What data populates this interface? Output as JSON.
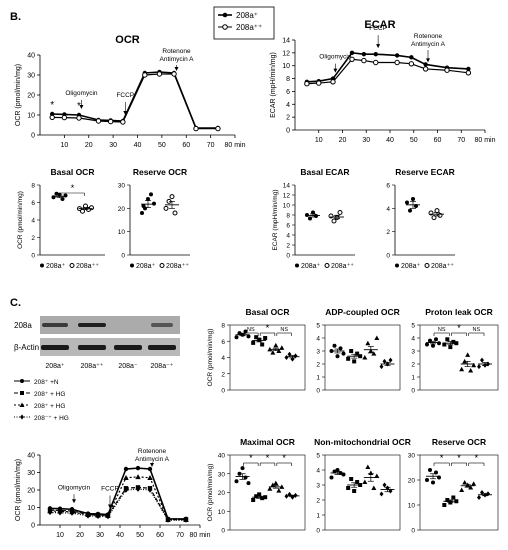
{
  "panel_B_label": "B.",
  "panel_C_label": "C.",
  "top_legend": {
    "series": [
      "208a⁺",
      "208a⁺⁺"
    ]
  },
  "c_legend": [
    "208⁺ +N",
    "208⁺ + HG",
    "208⁺ + HG",
    "208⁻⁺ + HG"
  ],
  "blot": {
    "rows": [
      "208a",
      "β-Actin"
    ],
    "lanes": [
      "208a⁺",
      "208a⁺⁺",
      "208a⁻",
      "208a⁻⁺"
    ]
  },
  "chart_data": [
    {
      "id": "ocr_time",
      "type": "line",
      "title": "OCR",
      "xlabel": "",
      "ylabel": "OCR (pmol/min/mg)",
      "x_unit": "min",
      "xlim": [
        0,
        80
      ],
      "ylim": [
        0,
        40
      ],
      "xticks": [
        10,
        20,
        30,
        40,
        50,
        60,
        70,
        80
      ],
      "yticks": [
        0,
        10,
        20,
        30,
        40
      ],
      "annotations": [
        "Oligomycin",
        "FCCP",
        "Rotenone",
        "Antimycin A"
      ],
      "injection_times": [
        17,
        35,
        56
      ],
      "star_times": [
        5,
        16
      ],
      "x": [
        5,
        10,
        16,
        24,
        29,
        34,
        43,
        49,
        55,
        64,
        73
      ],
      "series": [
        {
          "name": "208a⁺",
          "marker": "filled",
          "values": [
            10.5,
            10.3,
            10,
            7.5,
            7.3,
            7,
            31,
            31.5,
            31,
            3.5,
            3.5
          ]
        },
        {
          "name": "208a⁺⁺",
          "marker": "open",
          "values": [
            8.8,
            8.7,
            8.5,
            7,
            6.7,
            6.5,
            30,
            30.5,
            30.5,
            3.2,
            3.2
          ]
        }
      ]
    },
    {
      "id": "ecar_time",
      "type": "line",
      "title": "ECAR",
      "xlabel": "",
      "ylabel": "ECAR (mpH/min/mg)",
      "x_unit": "min",
      "xlim": [
        0,
        80
      ],
      "ylim": [
        0,
        14
      ],
      "xticks": [
        10,
        20,
        30,
        40,
        50,
        60,
        70,
        80
      ],
      "yticks": [
        0,
        2,
        4,
        6,
        8,
        10,
        12,
        14
      ],
      "annotations": [
        "Oligomycin",
        "FCCP",
        "Rotenone",
        "Antimycin A"
      ],
      "injection_times": [
        17,
        35,
        56
      ],
      "x": [
        5,
        10,
        16,
        24,
        29,
        34,
        43,
        49,
        55,
        64,
        73
      ],
      "series": [
        {
          "name": "208a⁺",
          "marker": "filled",
          "values": [
            7.5,
            7.6,
            8,
            12,
            11.8,
            11.8,
            11.6,
            11.3,
            10.2,
            9.7,
            9.5
          ]
        },
        {
          "name": "208a⁺⁺",
          "marker": "open",
          "values": [
            7.2,
            7.3,
            7.5,
            11,
            10.8,
            10.5,
            10.5,
            10.3,
            9.5,
            9.3,
            8.9
          ]
        }
      ]
    },
    {
      "id": "basal_ocr_b",
      "type": "scatter",
      "title": "Basal OCR",
      "ylabel": "OCR (pmol/min/mg)",
      "ylim": [
        0,
        8
      ],
      "yticks": [
        0,
        2,
        4,
        6,
        8
      ],
      "legend": [
        "208a⁺",
        "208a⁺⁺"
      ],
      "sig": [
        {
          "from": 0,
          "to": 1,
          "label": "*"
        }
      ],
      "groups": [
        {
          "name": "208a⁺",
          "marker": "filled",
          "values": [
            6.6,
            7.0,
            6.9,
            6.4,
            6.8
          ],
          "mean": 6.7,
          "sem": 0.15
        },
        {
          "name": "208a⁺⁺",
          "marker": "open",
          "values": [
            5.3,
            5.0,
            5.6,
            5.2,
            5.4
          ],
          "mean": 5.3,
          "sem": 0.12
        }
      ]
    },
    {
      "id": "reserve_ocr_b",
      "type": "scatter",
      "title": "Reserve OCR",
      "ylabel": "",
      "ylim": [
        0,
        30
      ],
      "yticks": [
        0,
        10,
        20,
        30
      ],
      "legend": [
        "208a⁺",
        "208a⁺⁺"
      ],
      "sig": [],
      "groups": [
        {
          "name": "208a⁺",
          "marker": "filled",
          "values": [
            18,
            20,
            24,
            26,
            22,
            21
          ],
          "mean": 21.8,
          "sem": 1.5
        },
        {
          "name": "208a⁺⁺",
          "marker": "open",
          "values": [
            20,
            23,
            25,
            18
          ],
          "mean": 21.5,
          "sem": 1.5
        }
      ]
    },
    {
      "id": "basal_ecar_b",
      "type": "scatter",
      "title": "Basal ECAR",
      "ylabel": "ECAR (mpH/min/mg)",
      "ylim": [
        0,
        14
      ],
      "yticks": [
        0,
        2,
        4,
        6,
        8,
        10,
        12,
        14
      ],
      "legend": [
        "208a⁺",
        "208a⁺⁺"
      ],
      "sig": [],
      "groups": [
        {
          "name": "208a⁺",
          "marker": "filled",
          "values": [
            8,
            7.3,
            8.5,
            7.8
          ],
          "mean": 7.9,
          "sem": 0.3
        },
        {
          "name": "208a⁺⁺",
          "marker": "open",
          "values": [
            7.8,
            6.8,
            7.5,
            8.5
          ],
          "mean": 7.6,
          "sem": 0.35
        }
      ]
    },
    {
      "id": "reserve_ecar_b",
      "type": "scatter",
      "title": "Reserve ECAR",
      "ylabel": "",
      "ylim": [
        0,
        6
      ],
      "yticks": [
        0,
        2,
        4,
        6
      ],
      "legend": [
        "208a⁺",
        "208a⁺⁺"
      ],
      "sig": [],
      "groups": [
        {
          "name": "208a⁺",
          "marker": "filled",
          "values": [
            4.5,
            3.8,
            4.8,
            4.2
          ],
          "mean": 4.3,
          "sem": 0.3
        },
        {
          "name": "208a⁺⁺",
          "marker": "open",
          "values": [
            3.6,
            3.2,
            3.8,
            3.4
          ],
          "mean": 3.5,
          "sem": 0.15
        }
      ]
    },
    {
      "id": "c_basal",
      "type": "scatter",
      "title": "Basal OCR",
      "ylabel": "OCR (pmol/min/mg)",
      "ylim": [
        0,
        8
      ],
      "yticks": [
        0,
        2,
        4,
        6,
        8
      ],
      "sig": [
        {
          "from": 0,
          "to": 1,
          "label": "NS"
        },
        {
          "from": 1,
          "to": 2,
          "label": "*"
        },
        {
          "from": 2,
          "to": 3,
          "label": "NS"
        }
      ],
      "groups": [
        {
          "marker": "circle",
          "values": [
            6.5,
            7.0,
            6.8,
            7.2,
            6.6
          ],
          "mean": 6.8,
          "sem": 0.12
        },
        {
          "marker": "square",
          "values": [
            5.8,
            6.5,
            6.2,
            5.6,
            6.4
          ],
          "mean": 6.1,
          "sem": 0.18
        },
        {
          "marker": "triangle",
          "values": [
            5.0,
            4.6,
            5.5,
            4.8,
            5.2
          ],
          "mean": 5.0,
          "sem": 0.15
        },
        {
          "marker": "diamond",
          "values": [
            4.0,
            4.4,
            3.8,
            4.2
          ],
          "mean": 4.1,
          "sem": 0.15
        }
      ]
    },
    {
      "id": "c_adp",
      "type": "scatter",
      "title": "ADP-coupled OCR",
      "ylabel": "",
      "ylim": [
        0,
        5
      ],
      "yticks": [
        0,
        1,
        2,
        3,
        4,
        5
      ],
      "sig": [],
      "groups": [
        {
          "marker": "circle",
          "values": [
            3.0,
            3.4,
            2.6,
            3.2,
            2.8
          ],
          "mean": 3.0,
          "sem": 0.15
        },
        {
          "marker": "square",
          "values": [
            2.4,
            3.0,
            2.2,
            2.8,
            2.6
          ],
          "mean": 2.6,
          "sem": 0.15
        },
        {
          "marker": "triangle",
          "values": [
            2.5,
            3.6,
            3.0,
            2.8,
            4.0
          ],
          "mean": 3.1,
          "sem": 0.25
        },
        {
          "marker": "diamond",
          "values": [
            1.8,
            2.2,
            2.0,
            2.3
          ],
          "mean": 2.0,
          "sem": 0.12
        }
      ]
    },
    {
      "id": "c_proton",
      "type": "scatter",
      "title": "Proton leak OCR",
      "ylabel": "",
      "ylim": [
        0,
        5
      ],
      "yticks": [
        0,
        1,
        2,
        3,
        4,
        5
      ],
      "sig": [
        {
          "from": 0,
          "to": 1,
          "label": "NS"
        },
        {
          "from": 1,
          "to": 2,
          "label": "*"
        },
        {
          "from": 2,
          "to": 3,
          "label": "NS"
        }
      ],
      "groups": [
        {
          "marker": "circle",
          "values": [
            3.5,
            3.8,
            3.4,
            3.9,
            3.6
          ],
          "mean": 3.65,
          "sem": 0.1
        },
        {
          "marker": "square",
          "values": [
            3.5,
            3.9,
            3.3,
            3.7,
            3.6
          ],
          "mean": 3.6,
          "sem": 0.12
        },
        {
          "marker": "triangle",
          "values": [
            1.6,
            2.2,
            2.7,
            1.5,
            1.9
          ],
          "mean": 2.0,
          "sem": 0.2
        },
        {
          "marker": "diamond",
          "values": [
            1.8,
            2.3,
            1.9,
            2.0
          ],
          "mean": 2.0,
          "sem": 0.12
        }
      ]
    },
    {
      "id": "c_maximal",
      "type": "scatter",
      "title": "Maximal OCR",
      "ylabel": "OCR (pmol/min/mg)",
      "ylim": [
        0,
        40
      ],
      "yticks": [
        0,
        10,
        20,
        30,
        40
      ],
      "sig": [
        {
          "from": 0,
          "to": 1,
          "label": "*"
        },
        {
          "from": 1,
          "to": 2,
          "label": "*"
        },
        {
          "from": 2,
          "to": 3,
          "label": "*"
        }
      ],
      "groups": [
        {
          "marker": "circle",
          "values": [
            26,
            30,
            33,
            28,
            25
          ],
          "mean": 28.5,
          "sem": 1.5
        },
        {
          "marker": "square",
          "values": [
            16,
            18,
            19,
            17,
            17.5
          ],
          "mean": 17.5,
          "sem": 0.6
        },
        {
          "marker": "triangle",
          "values": [
            22,
            24,
            25,
            21,
            23
          ],
          "mean": 23,
          "sem": 0.7
        },
        {
          "marker": "diamond",
          "values": [
            18,
            19,
            17.5,
            18.5
          ],
          "mean": 18.2,
          "sem": 0.4
        }
      ]
    },
    {
      "id": "c_nonmito",
      "type": "scatter",
      "title": "Non-mitochondrial OCR",
      "ylabel": "",
      "ylim": [
        0,
        5
      ],
      "yticks": [
        0,
        1,
        2,
        3,
        4,
        5
      ],
      "sig": [],
      "groups": [
        {
          "marker": "circle",
          "values": [
            3.5,
            3.9,
            4.0,
            3.8,
            3.7
          ],
          "mean": 3.8,
          "sem": 0.1
        },
        {
          "marker": "square",
          "values": [
            2.8,
            3.4,
            2.6,
            3.2,
            3.0
          ],
          "mean": 3.0,
          "sem": 0.15
        },
        {
          "marker": "triangle",
          "values": [
            3.2,
            4.2,
            3.8,
            2.8,
            3.6
          ],
          "mean": 3.5,
          "sem": 0.25
        },
        {
          "marker": "diamond",
          "values": [
            2.4,
            3.0,
            2.8,
            2.6
          ],
          "mean": 2.7,
          "sem": 0.15
        }
      ]
    },
    {
      "id": "c_reserve",
      "type": "scatter",
      "title": "Reserve OCR",
      "ylabel": "",
      "ylim": [
        0,
        30
      ],
      "yticks": [
        0,
        10,
        20,
        30
      ],
      "sig": [
        {
          "from": 0,
          "to": 1,
          "label": "*"
        },
        {
          "from": 1,
          "to": 2,
          "label": "*"
        },
        {
          "from": 2,
          "to": 3,
          "label": "*"
        }
      ],
      "groups": [
        {
          "marker": "circle",
          "values": [
            20,
            24,
            19,
            23,
            21
          ],
          "mean": 21.5,
          "sem": 1.0
        },
        {
          "marker": "square",
          "values": [
            10,
            12,
            11,
            13,
            11.5
          ],
          "mean": 11.5,
          "sem": 0.5
        },
        {
          "marker": "triangle",
          "values": [
            16,
            19,
            18,
            17,
            18.5
          ],
          "mean": 17.7,
          "sem": 0.6
        },
        {
          "marker": "diamond",
          "values": [
            13,
            15,
            14,
            14.5
          ],
          "mean": 14.1,
          "sem": 0.4
        }
      ]
    },
    {
      "id": "c_ocr_time",
      "type": "line",
      "title": "",
      "ylabel": "OCR (pmol/min/mg)",
      "xlabel": "",
      "x_unit": "min",
      "xlim": [
        0,
        80
      ],
      "ylim": [
        0,
        40
      ],
      "xticks": [
        10,
        20,
        30,
        40,
        50,
        60,
        70,
        80
      ],
      "yticks": [
        0,
        10,
        20,
        30,
        40
      ],
      "annotations": [
        "Oligomycin",
        "FCCP",
        "Rotenone",
        "Antimycin A"
      ],
      "injection_times": [
        17,
        35,
        56
      ],
      "x": [
        5,
        10,
        16,
        24,
        29,
        34,
        43,
        49,
        55,
        64,
        73
      ],
      "series": [
        {
          "name": "208⁺ +N",
          "marker": "circle",
          "values": [
            9.5,
            9.3,
            9.0,
            6.5,
            6.3,
            6.0,
            32,
            32.5,
            32,
            3.5,
            3.5
          ]
        },
        {
          "name": "208⁺ + HG",
          "marker": "square",
          "values": [
            8.5,
            8.3,
            8.0,
            6.0,
            5.8,
            5.5,
            21,
            21.5,
            21,
            3.2,
            3.2
          ]
        },
        {
          "name": "208⁺ + HG",
          "marker": "triangle",
          "values": [
            8.0,
            7.8,
            7.5,
            5.8,
            5.5,
            5.3,
            27,
            27.5,
            27,
            3.0,
            3.0
          ]
        },
        {
          "name": "208⁻⁺ + HG",
          "marker": "diamond",
          "values": [
            7.2,
            7.0,
            6.8,
            5.2,
            5.0,
            4.8,
            20,
            20.5,
            20,
            2.8,
            2.8
          ]
        }
      ]
    }
  ]
}
